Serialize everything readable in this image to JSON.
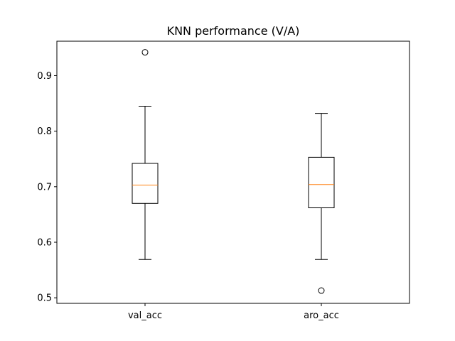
{
  "chart_data": {
    "type": "box",
    "title": "KNN performance (V/A)",
    "xlabel": "",
    "ylabel": "",
    "categories": [
      "val_acc",
      "aro_acc"
    ],
    "ylim": [
      0.49,
      0.962
    ],
    "yticks": [
      0.5,
      0.6,
      0.7,
      0.8,
      0.9
    ],
    "ytick_labels": [
      "0.5",
      "0.6",
      "0.7",
      "0.8",
      "0.9"
    ],
    "grid": false,
    "boxes": [
      {
        "name": "val_acc",
        "whisker_low": 0.569,
        "q1": 0.67,
        "median": 0.703,
        "q3": 0.742,
        "whisker_high": 0.845,
        "outliers": [
          0.942
        ]
      },
      {
        "name": "aro_acc",
        "whisker_low": 0.569,
        "q1": 0.662,
        "median": 0.704,
        "q3": 0.753,
        "whisker_high": 0.832,
        "outliers": [
          0.513
        ]
      }
    ],
    "colors": {
      "box": "#000000",
      "median": "#ff7f0e",
      "axes": "#000000"
    }
  }
}
